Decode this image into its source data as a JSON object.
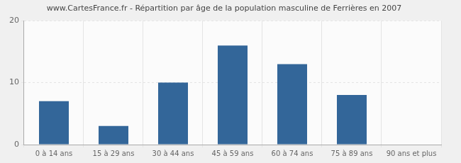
{
  "chart_data": {
    "type": "bar",
    "title": "www.CartesFrance.fr - Répartition par âge de la population masculine de Ferrières en 2007",
    "categories": [
      "0 à 14 ans",
      "15 à 29 ans",
      "30 à 44 ans",
      "45 à 59 ans",
      "60 à 74 ans",
      "75 à 89 ans",
      "90 ans et plus"
    ],
    "values": [
      7,
      3,
      10,
      16,
      13,
      8,
      0
    ],
    "color": "#336699",
    "ylim": [
      0,
      20
    ],
    "yticks": [
      0,
      10,
      20
    ],
    "grid": true
  }
}
